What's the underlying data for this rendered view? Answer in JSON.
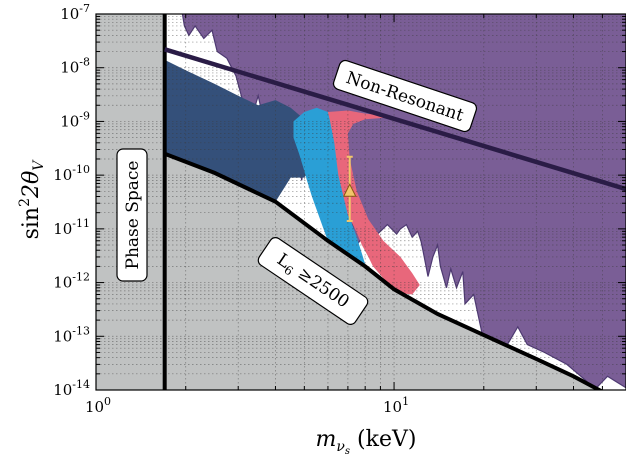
{
  "chart_data": {
    "type": "area",
    "title": "",
    "xlabel": {
      "base": "m",
      "sub": "ν",
      "subsub": "s",
      "unit": " (keV)"
    },
    "ylabel": {
      "text": "sin",
      "sup": "2",
      "mid": "2θ",
      "sub": "V"
    },
    "x_scale": "log",
    "y_scale": "log",
    "xlim": [
      1,
      60
    ],
    "ylim": [
      1e-14,
      1e-07
    ],
    "x_ticks": [
      {
        "value": 1,
        "base": "10",
        "exp": "0"
      },
      {
        "value": 10,
        "base": "10",
        "exp": "1"
      }
    ],
    "y_ticks": [
      {
        "value": 1e-07,
        "base": "10",
        "exp": "-7"
      },
      {
        "value": 1e-08,
        "base": "10",
        "exp": "-8"
      },
      {
        "value": 1e-09,
        "base": "10",
        "exp": "-9"
      },
      {
        "value": 1e-10,
        "base": "10",
        "exp": "-10"
      },
      {
        "value": 1e-11,
        "base": "10",
        "exp": "-11"
      },
      {
        "value": 1e-12,
        "base": "10",
        "exp": "-12"
      },
      {
        "value": 1e-13,
        "base": "10",
        "exp": "-13"
      },
      {
        "value": 1e-14,
        "base": "10",
        "exp": "-14"
      }
    ],
    "grid": true,
    "colors": {
      "phase_space": "#c0c2c2",
      "excluded": "#7a5e96",
      "excluded_edge": "#4e3a72",
      "navy": "#34507a",
      "blue": "#2a9fd6",
      "pink": "#e8677b",
      "line": "#000000",
      "nonres_line": "#2a1c46",
      "marker": "#f2c76a"
    },
    "phase_space_limit_keV": 1.7,
    "annotations": {
      "phase_space": "Phase Space",
      "non_resonant": "Non-Resonant",
      "l6_main": "L",
      "l6_sub": "6",
      "l6_rest": "≥2500"
    },
    "non_resonant_line": {
      "x": [
        1.7,
        60
      ],
      "y": [
        2.2e-08,
        5.5e-11
      ]
    },
    "l6_line": [
      [
        1.7,
        2.5e-10
      ],
      [
        2.5,
        1.1e-10
      ],
      [
        4,
        3.2e-11
      ],
      [
        6,
        6e-12
      ],
      [
        8,
        2e-12
      ],
      [
        10,
        7.5e-13
      ],
      [
        14,
        2.6e-13
      ],
      [
        20,
        1.05e-13
      ],
      [
        30,
        3.8e-14
      ],
      [
        40,
        1.8e-14
      ],
      [
        55,
        7e-15
      ]
    ],
    "excluded_region_lower_edge": [
      [
        1.95,
        1e-07
      ],
      [
        1.98,
        6e-08
      ],
      [
        2.05,
        4e-08
      ],
      [
        2.15,
        6e-08
      ],
      [
        2.3,
        3.5e-08
      ],
      [
        2.45,
        5e-08
      ],
      [
        2.55,
        2e-08
      ],
      [
        2.75,
        1.5e-08
      ],
      [
        2.95,
        7e-09
      ],
      [
        3.1,
        2.5e-09
      ],
      [
        3.3,
        1e-09
      ],
      [
        3.5,
        3e-09
      ],
      [
        3.6,
        1.5e-09
      ],
      [
        3.8,
        2e-09
      ],
      [
        3.95,
        6e-10
      ],
      [
        4.1,
        8e-10
      ],
      [
        4.3,
        2e-10
      ],
      [
        4.5,
        1.5e-10
      ],
      [
        4.7,
        4e-10
      ],
      [
        4.9,
        8e-11
      ],
      [
        5.1,
        3.5e-10
      ],
      [
        5.25,
        1.5e-10
      ],
      [
        5.5,
        9e-10
      ],
      [
        5.8,
        1.5e-09
      ],
      [
        6.1,
        1.2e-09
      ],
      [
        6.5,
        8e-10
      ],
      [
        7,
        3e-11
      ],
      [
        7.5,
        5e-12
      ],
      [
        8.2,
        1e-11
      ],
      [
        8.8,
        8e-12
      ],
      [
        9.5,
        1.2e-11
      ],
      [
        10.2,
        8e-12
      ],
      [
        10.5,
        1e-11
      ],
      [
        11,
        1.2e-11
      ],
      [
        11.5,
        7e-12
      ],
      [
        12,
        9e-12
      ],
      [
        12.3,
        6e-12
      ],
      [
        12.5,
        4e-12
      ],
      [
        13,
        1.3e-12
      ],
      [
        13.5,
        3e-12
      ],
      [
        14,
        5e-12
      ],
      [
        14.3,
        2e-12
      ],
      [
        15,
        8e-13
      ],
      [
        15.5,
        1.8e-12
      ],
      [
        16.2,
        8e-13
      ],
      [
        17,
        1.6e-12
      ],
      [
        17.3,
        4e-13
      ],
      [
        18.5,
        6e-13
      ],
      [
        20,
        8e-14
      ],
      [
        22,
        4.5e-14
      ],
      [
        24,
        7e-14
      ],
      [
        26,
        1.5e-13
      ],
      [
        28,
        7e-14
      ],
      [
        32,
        5e-14
      ],
      [
        38,
        3e-14
      ],
      [
        44,
        1.5e-14
      ],
      [
        47,
        1e-14
      ],
      [
        52,
        1.8e-14
      ],
      [
        60,
        1.1e-14
      ]
    ],
    "navy_region": [
      [
        1.7,
        1.4e-08
      ],
      [
        2.0,
        9e-09
      ],
      [
        2.5,
        5e-09
      ],
      [
        3.0,
        3e-09
      ],
      [
        3.5,
        2e-09
      ],
      [
        4.0,
        2.5e-09
      ],
      [
        4.5,
        1.8e-09
      ],
      [
        5.0,
        1.1e-09
      ],
      [
        5.5,
        8e-10
      ],
      [
        5.5,
        2e-10
      ],
      [
        5.0,
        9e-11
      ],
      [
        4.5,
        9e-11
      ],
      [
        4.0,
        3.2e-11
      ],
      [
        2.5,
        1.1e-10
      ],
      [
        1.7,
        2.5e-10
      ]
    ],
    "blue_region": [
      [
        4.6,
        1e-09
      ],
      [
        5.0,
        1.5e-09
      ],
      [
        5.5,
        1.8e-09
      ],
      [
        6.2,
        1.4e-09
      ],
      [
        6.5,
        8e-10
      ],
      [
        7.0,
        2e-11
      ],
      [
        7.5,
        7e-12
      ],
      [
        8.0,
        2.2e-12
      ],
      [
        6.0,
        6e-12
      ],
      [
        5.8,
        1e-11
      ],
      [
        5.3,
        4e-11
      ],
      [
        5.1,
        8e-11
      ],
      [
        5.0,
        1.2e-10
      ],
      [
        4.8,
        2.5e-10
      ],
      [
        4.6,
        5e-10
      ]
    ],
    "pink_region": [
      [
        6.0,
        1.5e-09
      ],
      [
        7.0,
        1.6e-09
      ],
      [
        8.0,
        1.4e-09
      ],
      [
        9.0,
        1.3e-09
      ],
      [
        10.0,
        1.2e-09
      ],
      [
        8.0,
        1.1e-09
      ],
      [
        7.3,
        9e-10
      ],
      [
        7.0,
        6e-10
      ],
      [
        7.1,
        2e-10
      ],
      [
        7.5,
        5e-11
      ],
      [
        8.2,
        1.5e-11
      ],
      [
        9.2,
        6e-12
      ],
      [
        10.5,
        3e-12
      ],
      [
        11.5,
        1.5e-12
      ],
      [
        12.2,
        9e-13
      ],
      [
        11.5,
        6e-13
      ],
      [
        10.2,
        6.5e-13
      ],
      [
        9.2,
        1.2e-12
      ],
      [
        8.5,
        2e-12
      ],
      [
        8.2,
        3e-12
      ],
      [
        7.8,
        5e-12
      ],
      [
        7.4,
        1e-11
      ],
      [
        7.0,
        1.8e-11
      ],
      [
        6.5,
        1e-10
      ],
      [
        6.3,
        4e-10
      ],
      [
        6.1,
        1e-09
      ]
    ],
    "marker": {
      "x": 7.1,
      "y": 5e-11,
      "y_err_low": 1.4e-11,
      "y_err_high": 2.2e-10,
      "shape": "triangle"
    }
  }
}
